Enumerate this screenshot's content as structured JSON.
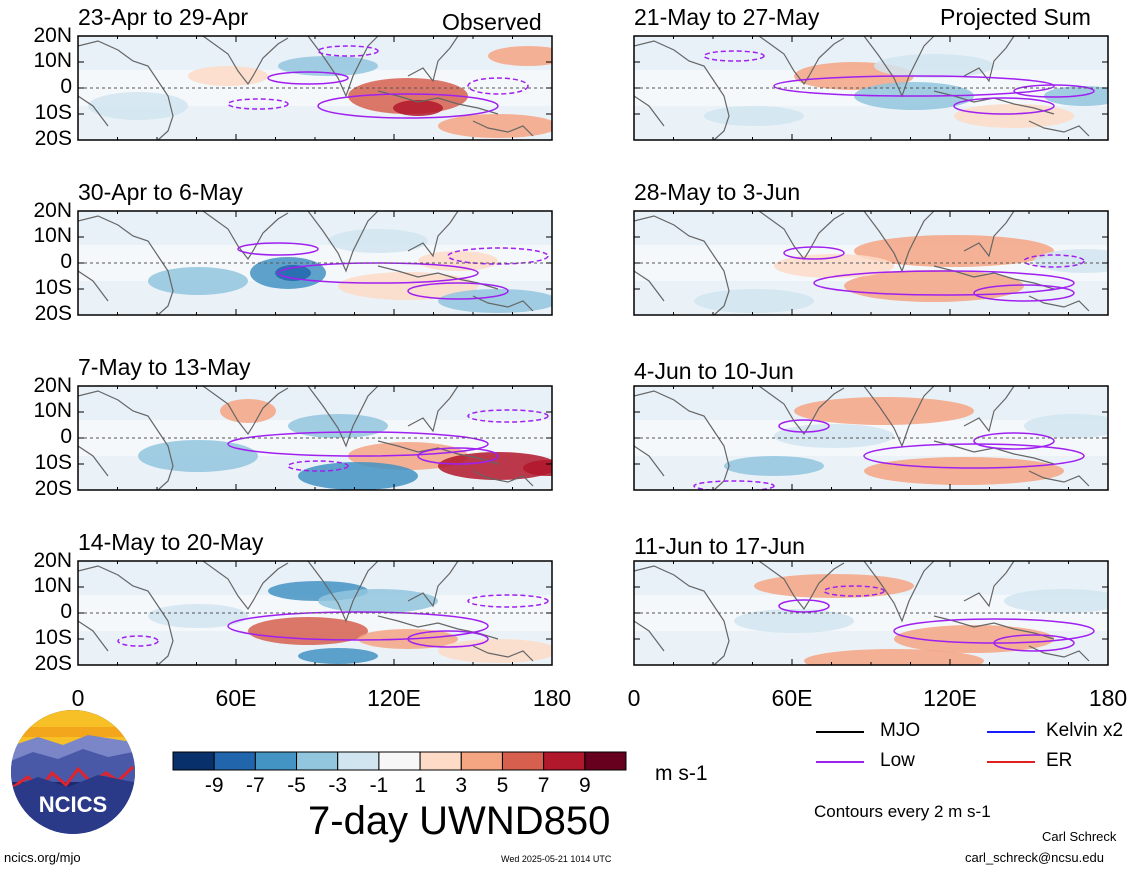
{
  "figure": {
    "title": "7-day UWND850",
    "units": "m s-1",
    "footer_left": "ncics.org/mjo",
    "footer_center": "Wed 2025-05-21 1014 UTC",
    "credit_name": "Carl Schreck",
    "credit_email": "carl_schreck@ncsu.edu",
    "contour_note": "Contours every 2 m s-1",
    "logo_text": "NCICS"
  },
  "columns": {
    "left_label": "Observed",
    "right_label": "Projected Sum"
  },
  "axis": {
    "lat_labels": [
      "20N",
      "10N",
      "0",
      "10S",
      "20S"
    ],
    "lon_labels": [
      "0",
      "60E",
      "120E",
      "180"
    ]
  },
  "colorbar": {
    "labels": [
      "-9",
      "-7",
      "-5",
      "-3",
      "-1",
      "1",
      "3",
      "5",
      "7",
      "9"
    ],
    "colors": [
      "#08306b",
      "#2166ac",
      "#4393c3",
      "#92c5de",
      "#d1e5f0",
      "#f7f7f7",
      "#fddbc7",
      "#f4a582",
      "#d6604d",
      "#b2182b",
      "#67001f"
    ]
  },
  "legend": [
    {
      "label": "MJO",
      "color": "#000000"
    },
    {
      "label": "Kelvin x2",
      "color": "#1a1aff"
    },
    {
      "label": "Low",
      "color": "#a020f0"
    },
    {
      "label": "ER",
      "color": "#e02020"
    }
  ],
  "chart_data": {
    "type": "heatmap",
    "title": "7-day UWND850",
    "xlabel": "",
    "ylabel": "",
    "xlim": [
      0,
      180
    ],
    "ylim": [
      -20,
      20
    ],
    "x_ticks": [
      "0",
      "60E",
      "120E",
      "180"
    ],
    "y_ticks": [
      "20N",
      "10N",
      "0",
      "10S",
      "20S"
    ],
    "color_levels": [
      -9,
      -7,
      -5,
      -3,
      -1,
      1,
      3,
      5,
      7,
      9
    ],
    "panels": [
      {
        "period": "23-Apr to 29-Apr",
        "kind": "Observed"
      },
      {
        "period": "30-Apr to 6-May",
        "kind": "Observed"
      },
      {
        "period": "7-May to 13-May",
        "kind": "Observed"
      },
      {
        "period": "14-May to 20-May",
        "kind": "Observed"
      },
      {
        "period": "21-May to 27-May",
        "kind": "Projected Sum"
      },
      {
        "period": "28-May to 3-Jun",
        "kind": "Projected Sum"
      },
      {
        "period": "4-Jun to 10-Jun",
        "kind": "Projected Sum"
      },
      {
        "period": "11-Jun to 17-Jun",
        "kind": "Projected Sum"
      }
    ]
  }
}
